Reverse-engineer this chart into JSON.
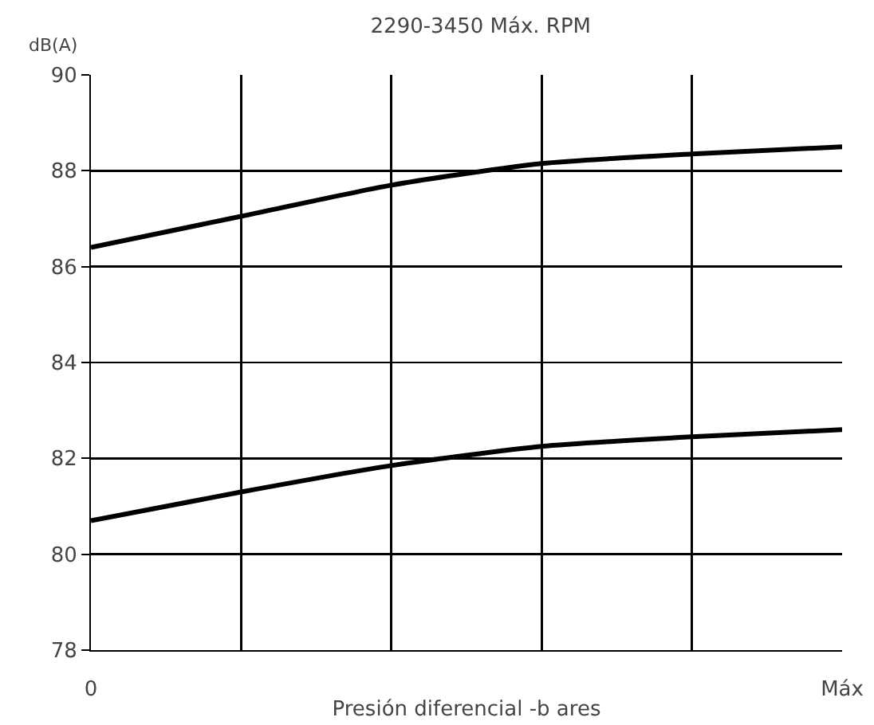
{
  "chart_data": {
    "type": "line",
    "title": "2290-3450 Máx. RPM",
    "xlabel": "Presión diferencial -b ares",
    "ylabel": "dB(A)",
    "categories": [
      "0",
      null,
      null,
      null,
      null,
      "Máx"
    ],
    "series": [
      {
        "color": "#000000",
        "values": [
          86.4,
          87.05,
          87.7,
          88.15,
          88.35,
          88.5
        ]
      },
      {
        "color": "#000000",
        "values": [
          80.7,
          81.3,
          81.85,
          82.25,
          82.45,
          82.6
        ]
      }
    ],
    "ylim": [
      78,
      90
    ],
    "yticks": [
      78,
      80,
      82,
      84,
      86,
      88,
      90
    ],
    "grid": true
  }
}
